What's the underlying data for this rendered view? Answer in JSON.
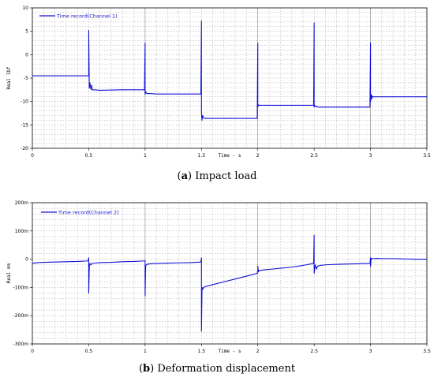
{
  "chart_data": [
    {
      "type": "line",
      "caption_letter": "a",
      "caption_text": "Impact load",
      "xlabel": "Time - s",
      "ylabel": "Real lbf",
      "xlim": [
        0,
        3.5
      ],
      "ylim": [
        -20,
        10
      ],
      "x_ticks": [
        {
          "v": 0,
          "label": "0"
        },
        {
          "v": 0.5,
          "label": "0.5"
        },
        {
          "v": 1,
          "label": "1"
        },
        {
          "v": 1.5,
          "label": "1.5"
        },
        {
          "v": 2,
          "label": "2"
        },
        {
          "v": 2.5,
          "label": "2.5"
        },
        {
          "v": 3,
          "label": "3"
        },
        {
          "v": 3.5,
          "label": "3.5"
        }
      ],
      "y_ticks": [
        {
          "v": 10,
          "label": "10"
        },
        {
          "v": 5,
          "label": "5"
        },
        {
          "v": 0,
          "label": "0"
        },
        {
          "v": -5,
          "label": "-5"
        },
        {
          "v": -10,
          "label": "-10"
        },
        {
          "v": -15,
          "label": "-15"
        },
        {
          "v": -20,
          "label": "-20"
        }
      ],
      "grid": true,
      "legend_position": "top-left",
      "series": [
        {
          "name": "Time record(Channel 1)",
          "color": "#1010d8",
          "x": [
            0,
            0.5,
            0.5,
            0.505,
            0.51,
            0.52,
            0.525,
            0.53,
            0.545,
            0.6,
            0.8,
            0.995,
            1.0,
            1.0,
            1.005,
            1.01,
            1.02,
            1.04,
            1.1,
            1.3,
            1.495,
            1.5,
            1.5,
            1.505,
            1.51,
            1.52,
            1.53,
            1.545,
            1.6,
            1.8,
            1.995,
            2.0,
            2.0,
            2.005,
            2.01,
            2.02,
            2.04,
            2.1,
            2.3,
            2.495,
            2.5,
            2.5,
            2.505,
            2.51,
            2.52,
            2.54,
            2.6,
            2.8,
            2.995,
            3.0,
            3.0,
            3.005,
            3.01,
            3.015,
            3.02,
            3.03,
            3.05,
            3.1,
            3.3,
            3.5
          ],
          "y": [
            -4.5,
            -4.5,
            5.2,
            -7.2,
            -6.0,
            -7.4,
            -6.5,
            -7.5,
            -7.5,
            -7.6,
            -7.5,
            -7.5,
            2.5,
            -8.5,
            -7.8,
            -8.2,
            -8.3,
            -8.3,
            -8.4,
            -8.4,
            -8.4,
            7.2,
            -12.5,
            -14.0,
            -13.0,
            -13.5,
            -13.6,
            -13.6,
            -13.6,
            -13.6,
            -13.6,
            2.5,
            -11.2,
            -10.7,
            -10.8,
            -10.8,
            -10.8,
            -10.8,
            -10.8,
            -10.8,
            6.8,
            -11.2,
            -10.8,
            -11.0,
            -11.1,
            -11.2,
            -11.2,
            -11.2,
            -11.2,
            2.5,
            -10.0,
            -8.5,
            -9.5,
            -8.8,
            -9.0,
            -9.0,
            -9.0,
            -9.0,
            -9.0,
            -9.0
          ]
        }
      ]
    },
    {
      "type": "line",
      "caption_letter": "b",
      "caption_text": "Deformation displacement",
      "xlabel": "Time - s",
      "ylabel": "Real mm",
      "xlim": [
        0,
        3.5
      ],
      "ylim": [
        -300,
        200
      ],
      "x_ticks": [
        {
          "v": 0,
          "label": "0"
        },
        {
          "v": 0.5,
          "label": "0.5"
        },
        {
          "v": 1,
          "label": "1"
        },
        {
          "v": 1.5,
          "label": "1.5"
        },
        {
          "v": 2,
          "label": "2"
        },
        {
          "v": 2.5,
          "label": "2.5"
        },
        {
          "v": 3,
          "label": "3"
        },
        {
          "v": 3.5,
          "label": "3.5"
        }
      ],
      "y_ticks": [
        {
          "v": 200,
          "label": "200m"
        },
        {
          "v": 100,
          "label": "100m"
        },
        {
          "v": 0,
          "label": "0"
        },
        {
          "v": -100,
          "label": "-100m"
        },
        {
          "v": -200,
          "label": "-200m"
        },
        {
          "v": -300,
          "label": "-300m"
        }
      ],
      "grid": true,
      "legend_position": "top-left",
      "series": [
        {
          "name": "Time record(Channel 2)",
          "color": "#1010d8",
          "x": [
            0,
            0.05,
            0.1,
            0.2,
            0.3,
            0.4,
            0.495,
            0.5,
            0.5,
            0.505,
            0.51,
            0.52,
            0.53,
            0.55,
            0.6,
            0.7,
            0.8,
            0.9,
            0.995,
            1.0,
            1.0,
            1.005,
            1.01,
            1.02,
            1.03,
            1.05,
            1.1,
            1.2,
            1.3,
            1.4,
            1.495,
            1.5,
            1.5,
            1.505,
            1.51,
            1.515,
            1.52,
            1.53,
            1.55,
            1.6,
            1.7,
            1.8,
            1.9,
            1.995,
            2.0,
            2.0,
            2.005,
            2.01,
            2.02,
            2.05,
            2.1,
            2.2,
            2.3,
            2.4,
            2.495,
            2.5,
            2.5,
            2.505,
            2.51,
            2.52,
            2.53,
            2.55,
            2.6,
            2.7,
            2.8,
            2.9,
            2.995,
            3.0,
            3.0,
            3.005,
            3.01,
            3.02,
            3.03,
            3.05,
            3.1,
            3.2,
            3.3,
            3.4,
            3.5
          ],
          "y": [
            -15,
            -12,
            -11,
            -10,
            -9,
            -8,
            -6,
            5,
            -120,
            -30,
            -15,
            -20,
            -15,
            -14,
            -12,
            -11,
            -9,
            -8,
            -6,
            -5,
            -130,
            -25,
            -20,
            -18,
            -17,
            -16,
            -15,
            -14,
            -13,
            -12,
            -10,
            5,
            -255,
            -110,
            -100,
            -105,
            -100,
            -98,
            -95,
            -90,
            -80,
            -70,
            -60,
            -50,
            -42,
            -25,
            -45,
            -40,
            -40,
            -38,
            -36,
            -32,
            -28,
            -22,
            -15,
            85,
            -50,
            -30,
            -20,
            -35,
            -25,
            -22,
            -20,
            -18,
            -17,
            -16,
            -15,
            5,
            -25,
            0,
            3,
            2,
            2,
            3,
            2,
            2,
            1,
            0,
            0
          ]
        }
      ]
    }
  ]
}
